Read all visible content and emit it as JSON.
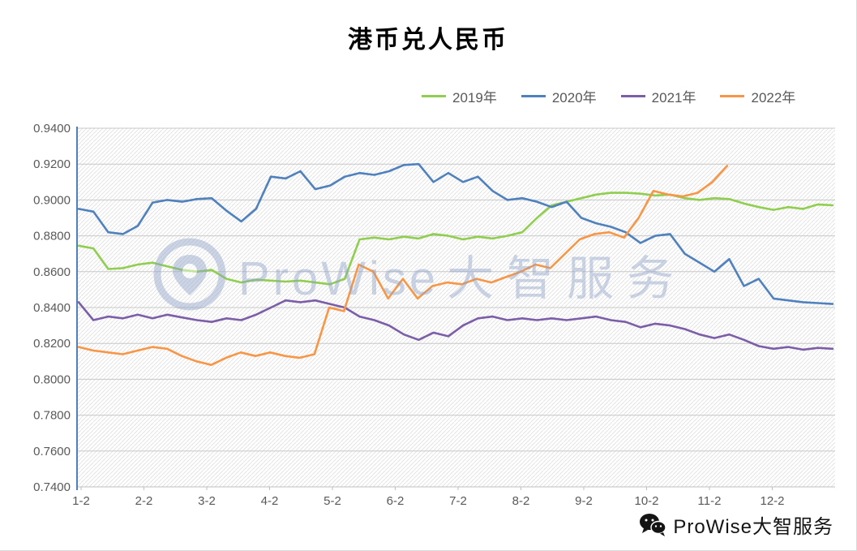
{
  "title": "港币兑人民币",
  "watermark": {
    "brand": "ProWise",
    "cn": "大智服务"
  },
  "footer_watermark": {
    "text": "ProWise大智服务"
  },
  "colors": {
    "axis_line": "#4f81bd",
    "gridline": "#c8c8c8",
    "hatch": "#e3e3e3",
    "tick_text": "#595959"
  },
  "chart_data": {
    "type": "line",
    "title": "港币兑人民币",
    "xlabel": "",
    "ylabel": "",
    "ylim": [
      0.74,
      0.94
    ],
    "y_ticks": [
      "0.9400",
      "0.9200",
      "0.9000",
      "0.8800",
      "0.8600",
      "0.8400",
      "0.8200",
      "0.8000",
      "0.7800",
      "0.7600",
      "0.7400"
    ],
    "x_ticks": [
      "1-2",
      "2-2",
      "3-2",
      "4-2",
      "5-2",
      "6-2",
      "7-2",
      "8-2",
      "9-2",
      "10-2",
      "11-2",
      "12-2"
    ],
    "grid": "horizontal",
    "legend_position": "top",
    "series": [
      {
        "name": "2019年",
        "color": "#8fce4e",
        "x_span": 1.0,
        "values": [
          0.8745,
          0.873,
          0.8615,
          0.862,
          0.864,
          0.865,
          0.863,
          0.861,
          0.86,
          0.861,
          0.856,
          0.854,
          0.8555,
          0.855,
          0.8545,
          0.855,
          0.854,
          0.853,
          0.856,
          0.878,
          0.879,
          0.878,
          0.8795,
          0.8785,
          0.881,
          0.88,
          0.878,
          0.8795,
          0.8785,
          0.88,
          0.882,
          0.89,
          0.897,
          0.899,
          0.901,
          0.903,
          0.904,
          0.904,
          0.9035,
          0.9025,
          0.903,
          0.901,
          0.9,
          0.901,
          0.9005,
          0.898,
          0.896,
          0.8945,
          0.896,
          0.895,
          0.8975,
          0.897
        ]
      },
      {
        "name": "2020年",
        "color": "#4f81bd",
        "x_span": 1.0,
        "values": [
          0.895,
          0.8935,
          0.882,
          0.881,
          0.8855,
          0.8985,
          0.9,
          0.899,
          0.9005,
          0.901,
          0.894,
          0.888,
          0.895,
          0.913,
          0.912,
          0.916,
          0.906,
          0.908,
          0.913,
          0.915,
          0.914,
          0.916,
          0.9195,
          0.92,
          0.91,
          0.915,
          0.91,
          0.913,
          0.905,
          0.9,
          0.901,
          0.899,
          0.896,
          0.899,
          0.89,
          0.887,
          0.885,
          0.882,
          0.876,
          0.88,
          0.881,
          0.87,
          0.865,
          0.86,
          0.867,
          0.852,
          0.856,
          0.845,
          0.844,
          0.843,
          0.8425,
          0.842
        ]
      },
      {
        "name": "2021年",
        "color": "#7b5ea7",
        "x_span": 1.0,
        "values": [
          0.843,
          0.833,
          0.835,
          0.834,
          0.836,
          0.834,
          0.836,
          0.8345,
          0.833,
          0.832,
          0.834,
          0.833,
          0.836,
          0.84,
          0.844,
          0.843,
          0.844,
          0.842,
          0.84,
          0.835,
          0.833,
          0.83,
          0.825,
          0.822,
          0.826,
          0.824,
          0.83,
          0.834,
          0.835,
          0.833,
          0.834,
          0.833,
          0.834,
          0.833,
          0.834,
          0.835,
          0.833,
          0.832,
          0.829,
          0.831,
          0.83,
          0.828,
          0.825,
          0.823,
          0.825,
          0.822,
          0.8185,
          0.817,
          0.818,
          0.8165,
          0.8175,
          0.817
        ]
      },
      {
        "name": "2022年",
        "color": "#f79646",
        "x_span": 0.86,
        "values": [
          0.818,
          0.816,
          0.815,
          0.814,
          0.816,
          0.818,
          0.817,
          0.813,
          0.81,
          0.808,
          0.812,
          0.815,
          0.813,
          0.815,
          0.813,
          0.812,
          0.814,
          0.84,
          0.838,
          0.864,
          0.86,
          0.845,
          0.856,
          0.845,
          0.852,
          0.854,
          0.853,
          0.856,
          0.854,
          0.857,
          0.86,
          0.864,
          0.862,
          0.87,
          0.878,
          0.881,
          0.882,
          0.879,
          0.89,
          0.905,
          0.903,
          0.902,
          0.904,
          0.91,
          0.919
        ]
      }
    ]
  }
}
